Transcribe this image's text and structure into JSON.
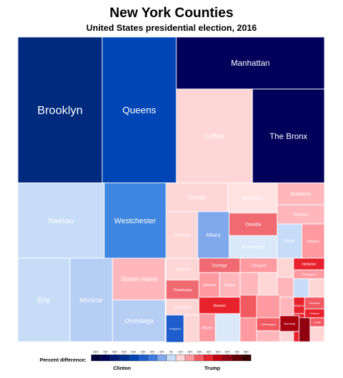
{
  "chart_data": {
    "type": "treemap",
    "title": "New York Counties",
    "subtitle": "United States presidential election, 2016",
    "legend": {
      "label": "Percent difference:",
      "clinton_label": "Clinton",
      "trump_label": "Trump",
      "ticks": [
        "80%",
        "70%",
        "60%",
        "50%",
        "40%",
        "30%",
        "20%",
        "10%",
        "0%",
        "10%",
        "20%",
        "30%",
        "40%",
        "50%",
        "60%",
        "70%",
        "80%"
      ],
      "colors": [
        "#00003a",
        "#00005a",
        "#001a78",
        "#00308f",
        "#0045b5",
        "#1f5ccc",
        "#3f7ae0",
        "#80a8ec",
        "#c6dcf7",
        "#ffd6d6",
        "#ff9aa0",
        "#f25a62",
        "#e8222c",
        "#c00012",
        "#900010",
        "#640005",
        "#3a0000"
      ]
    },
    "counties": [
      {
        "name": "Brooklyn",
        "winner": "Clinton",
        "color": "#002a7e"
      },
      {
        "name": "Queens",
        "winner": "Clinton",
        "color": "#0045b5"
      },
      {
        "name": "Manhattan",
        "winner": "Clinton",
        "color": "#00005a"
      },
      {
        "name": "The Bronx",
        "winner": "Clinton",
        "color": "#00005a"
      },
      {
        "name": "Suffolk",
        "winner": "Trump",
        "color": "#ffd6d6"
      },
      {
        "name": "Nassau",
        "winner": "Clinton",
        "color": "#c6dcf7"
      },
      {
        "name": "Westchester",
        "winner": "Clinton",
        "color": "#3f86e0"
      },
      {
        "name": "Erie",
        "winner": "Clinton",
        "color": "#c6dcf7"
      },
      {
        "name": "Monroe",
        "winner": "Clinton",
        "color": "#b6cef4"
      },
      {
        "name": "Staten Island",
        "winner": "Trump",
        "color": "#ffb7bc"
      },
      {
        "name": "Onondaga",
        "winner": "Clinton",
        "color": "#b6cef4"
      },
      {
        "name": "Orange",
        "winner": "Trump",
        "color": "#ffd6d6"
      },
      {
        "name": "Dutchess",
        "winner": "Trump",
        "color": "#ffe3e3"
      },
      {
        "name": "Rockland",
        "winner": "Trump",
        "color": "#ffb7bc"
      },
      {
        "name": "Saratoga",
        "winner": "Trump",
        "color": "#ffd6d6"
      },
      {
        "name": "Albany",
        "winner": "Clinton",
        "color": "#80a8ec"
      },
      {
        "name": "Oneida",
        "winner": "Trump",
        "color": "#f06a72"
      },
      {
        "name": "Schenectady",
        "winner": "Clinton",
        "color": "#dbe8fa"
      },
      {
        "name": "Ulster",
        "winner": "Clinton",
        "color": "#c6dcf7"
      },
      {
        "name": "Niagara",
        "winner": "Trump",
        "color": "#ff9aa0"
      },
      {
        "name": "Broome",
        "winner": "Trump",
        "color": "#ffd6d6"
      },
      {
        "name": "Putnam",
        "winner": "Trump",
        "color": "#ffb7bc"
      },
      {
        "name": "Rensselaer",
        "winner": "Trump",
        "color": "#ffd6d6"
      },
      {
        "name": "Chautauqua",
        "winner": "Trump",
        "color": "#f06a72"
      },
      {
        "name": "Oswego",
        "winner": "Trump",
        "color": "#f06a72"
      },
      {
        "name": "Jefferson",
        "winner": "Trump",
        "color": "#ff9aa0"
      },
      {
        "name": "Ontario",
        "winner": "Trump",
        "color": "#ffb7bc"
      },
      {
        "name": "Tompkins",
        "winner": "Clinton",
        "color": "#1f5ccc"
      },
      {
        "name": "Steuben",
        "winner": "Trump",
        "color": "#e8222c"
      },
      {
        "name": "Wayne",
        "winner": "Trump",
        "color": "#ff9aa0"
      },
      {
        "name": "Livingston",
        "winner": "Trump",
        "color": "#ff9aa0"
      },
      {
        "name": "Cattaraugus",
        "winner": "Trump",
        "color": "#f25a62"
      },
      {
        "name": "Wyoming",
        "winner": "Trump",
        "color": "#a8000f"
      },
      {
        "name": "Herkimer",
        "winner": "Trump",
        "color": "#e8222c"
      },
      {
        "name": "Allegany",
        "winner": "Trump",
        "color": "#e8222c"
      },
      {
        "name": "Orleans",
        "winner": "Trump",
        "color": "#e8222c"
      },
      {
        "name": "Lewis",
        "winner": "Trump",
        "color": "#f25a62"
      },
      {
        "name": "Washington",
        "winner": "Trump",
        "color": "#ff9aa0"
      },
      {
        "name": "Genesee",
        "winner": "Trump",
        "color": "#f25a62"
      }
    ]
  }
}
